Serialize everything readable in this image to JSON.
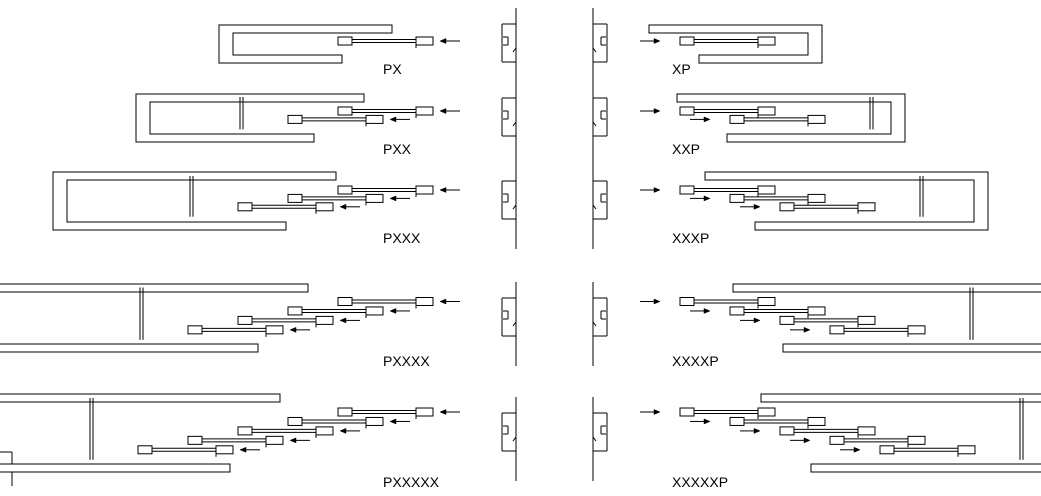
{
  "diagram": {
    "stroke_color": "#000000",
    "background": "#ffffff",
    "rows": [
      {
        "count": 1,
        "left_label": "PX",
        "right_label": "XP"
      },
      {
        "count": 2,
        "left_label": "PXX",
        "right_label": "XXP"
      },
      {
        "count": 3,
        "left_label": "PXXX",
        "right_label": "XXXP"
      },
      {
        "count": 4,
        "left_label": "PXXXX",
        "right_label": "XXXXP"
      },
      {
        "count": 5,
        "left_label": "PXXXXX",
        "right_label": "XXXXXP"
      }
    ]
  }
}
